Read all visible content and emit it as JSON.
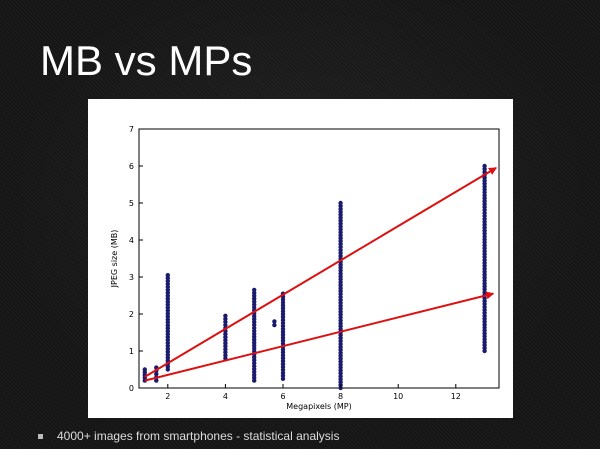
{
  "slide": {
    "title": "MB vs MPs",
    "bullet": "4000+ images from smartphones - statistical analysis"
  },
  "colors": {
    "background": "#161616",
    "points": "#1a1a6e",
    "trend_lines": "#dd1111"
  },
  "chart_data": {
    "type": "scatter",
    "title": "",
    "xlabel": "Megapixels (MP)",
    "ylabel": "JPEG size (MB)",
    "xlim": [
      1,
      13.5
    ],
    "ylim": [
      0,
      7
    ],
    "xticks": [
      "2",
      "4",
      "6",
      "8",
      "10",
      "12"
    ],
    "yticks": [
      "0",
      "1",
      "2",
      "3",
      "4",
      "5",
      "6",
      "7"
    ],
    "grid": false,
    "legend": "none",
    "scatter_columns": [
      {
        "x": 1.2,
        "y_min": 0.2,
        "y_max": 0.5
      },
      {
        "x": 1.6,
        "y_min": 0.2,
        "y_max": 0.55
      },
      {
        "x": 2.0,
        "y_min": 0.5,
        "y_max": 3.05
      },
      {
        "x": 4.0,
        "y_min": 0.8,
        "y_max": 1.95
      },
      {
        "x": 5.0,
        "y_min": 0.2,
        "y_max": 2.65
      },
      {
        "x": 5.7,
        "y_min": 1.7,
        "y_max": 1.8
      },
      {
        "x": 6.0,
        "y_min": 0.25,
        "y_max": 2.55
      },
      {
        "x": 8.0,
        "y_min": 0.0,
        "y_max": 5.0
      },
      {
        "x": 13.0,
        "y_min": 1.0,
        "y_max": 6.0
      }
    ],
    "trend_lines": [
      {
        "x1": 1.2,
        "y1": 0.3,
        "x2": 13.4,
        "y2": 5.95
      },
      {
        "x1": 1.2,
        "y1": 0.2,
        "x2": 13.3,
        "y2": 2.55
      }
    ]
  }
}
